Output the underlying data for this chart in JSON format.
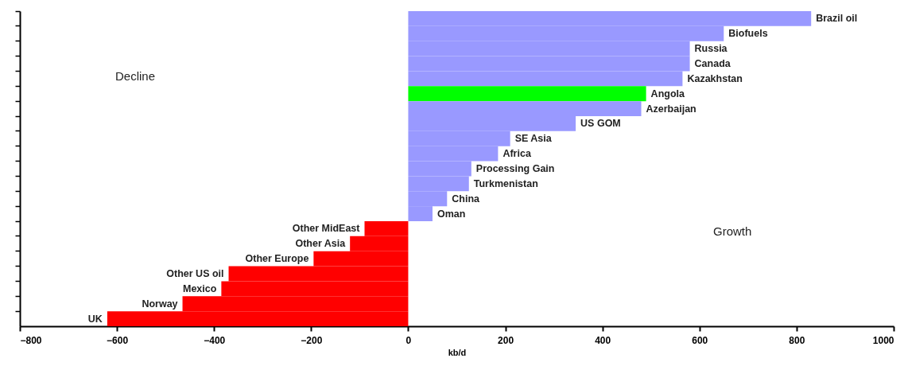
{
  "chart_data": {
    "type": "bar",
    "orientation": "horizontal",
    "tick_labels": "x",
    "xlabel": "kb/d",
    "xlim": [
      -800,
      1000
    ],
    "xticks": [
      -800,
      -600,
      -400,
      -200,
      0,
      200,
      400,
      600,
      800,
      1000
    ],
    "categories": [
      "Brazil oil",
      "Biofuels",
      "Russia",
      "Canada",
      "Kazakhstan",
      "Angola",
      "Azerbaijan",
      "US GOM",
      "SE Asia",
      "Africa",
      "Processing Gain",
      "Turkmenistan",
      "China",
      "Oman",
      "Other MidEast",
      "Other Asia",
      "Other Europe",
      "Other US oil",
      "Mexico",
      "Norway",
      "UK"
    ],
    "values": [
      830,
      650,
      580,
      580,
      565,
      490,
      480,
      345,
      210,
      185,
      130,
      125,
      80,
      50,
      -90,
      -120,
      -195,
      -370,
      -385,
      -465,
      -620
    ],
    "colors": [
      "#9999ff",
      "#9999ff",
      "#9999ff",
      "#9999ff",
      "#9999ff",
      "#00ff00",
      "#9999ff",
      "#9999ff",
      "#9999ff",
      "#9999ff",
      "#9999ff",
      "#9999ff",
      "#9999ff",
      "#9999ff",
      "#ff0000",
      "#ff0000",
      "#ff0000",
      "#ff0000",
      "#ff0000",
      "#ff0000",
      "#ff0000"
    ],
    "annotations": [
      "Decline",
      "Growth"
    ]
  }
}
